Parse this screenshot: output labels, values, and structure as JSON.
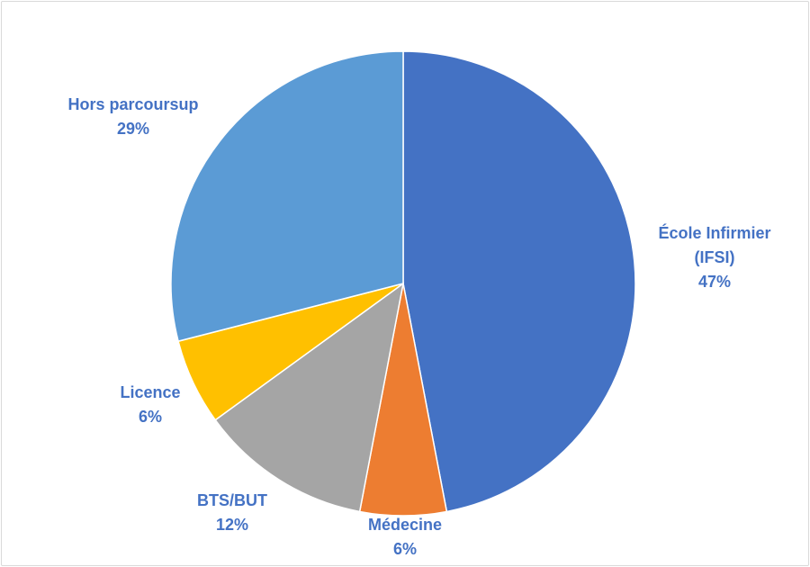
{
  "chart_data": {
    "type": "pie",
    "title": "",
    "slices": [
      {
        "label": "École Infirmier (IFSI)",
        "label_lines": [
          "École Infirmier",
          "(IFSI)"
        ],
        "value": 47,
        "pct_text": "47%",
        "color": "#4472C4",
        "label_color": "#4472C4"
      },
      {
        "label": "Médecine",
        "label_lines": [
          "Médecine"
        ],
        "value": 6,
        "pct_text": "6%",
        "color": "#ED7D31",
        "label_color": "#4472C4"
      },
      {
        "label": "BTS/BUT",
        "label_lines": [
          "BTS/BUT"
        ],
        "value": 12,
        "pct_text": "12%",
        "color": "#A5A5A5",
        "label_color": "#4472C4"
      },
      {
        "label": "Licence",
        "label_lines": [
          "Licence"
        ],
        "value": 6,
        "pct_text": "6%",
        "color": "#FFC000",
        "label_color": "#4472C4"
      },
      {
        "label": "Hors parcoursup",
        "label_lines": [
          "Hors parcoursup"
        ],
        "value": 29,
        "pct_text": "29%",
        "color": "#5B9BD5",
        "label_color": "#4472C4"
      }
    ]
  }
}
